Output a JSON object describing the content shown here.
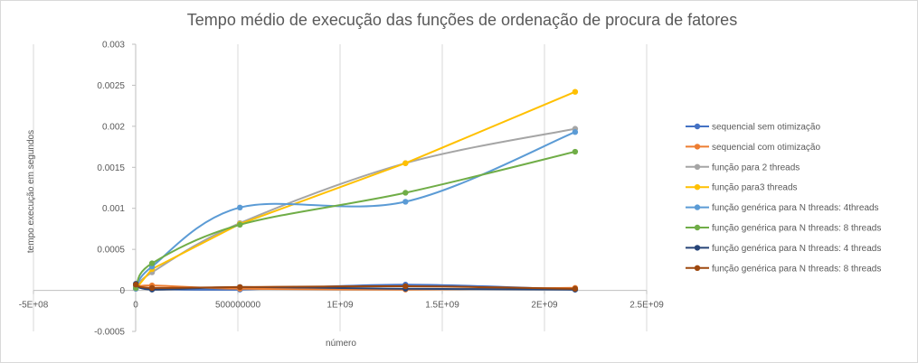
{
  "chart_data": {
    "type": "scatter",
    "title": "Tempo médio de execução das funções de ordenação de procura de fatores",
    "xlabel": "número",
    "ylabel": "tempo execução em segundos",
    "xlim": [
      -500000000,
      2500000000
    ],
    "ylim": [
      -0.0005,
      0.003
    ],
    "x_ticks": [
      -500000000,
      0,
      500000000,
      1000000000,
      1500000000,
      2000000000,
      2500000000
    ],
    "x_tick_labels": [
      "-5E+08",
      "0",
      "500000000",
      "1E+09",
      "1.5E+09",
      "2E+09",
      "2.5E+09"
    ],
    "y_ticks": [
      -0.0005,
      0,
      0.0005,
      0.001,
      0.0015,
      0.002,
      0.0025,
      0.003
    ],
    "y_tick_labels": [
      "-0.0005",
      "0",
      "0.0005",
      "0.001",
      "0.0015",
      "0.002",
      "0.0025",
      "0.003"
    ],
    "grid": "vertical major gridlines",
    "legend_position": "right",
    "series": [
      {
        "name": "sequencial sem otimização",
        "color": "#4472c4",
        "smooth": true,
        "x": [
          1000000,
          80000000,
          510000000,
          1320000000,
          2150000000
        ],
        "y": [
          5e-05,
          2e-05,
          1e-05,
          7e-05,
          1e-05
        ]
      },
      {
        "name": "sequencial com otimização",
        "color": "#ed7d31",
        "smooth": true,
        "x": [
          1000000,
          80000000,
          510000000,
          1320000000,
          2150000000
        ],
        "y": [
          3e-05,
          6e-05,
          2e-05,
          1e-05,
          3e-05
        ]
      },
      {
        "name": "função para 2 threads",
        "color": "#a5a5a5",
        "smooth": true,
        "x": [
          1000000,
          80000000,
          510000000,
          1320000000,
          2150000000
        ],
        "y": [
          2e-05,
          0.00022,
          0.00082,
          0.00155,
          0.00197
        ]
      },
      {
        "name": "função para3 threads",
        "color": "#ffc000",
        "smooth": false,
        "x": [
          1000000,
          80000000,
          510000000,
          1320000000,
          2150000000
        ],
        "y": [
          2e-05,
          0.00026,
          0.00081,
          0.00155,
          0.00242
        ]
      },
      {
        "name": "função genérica para N threads: 4threads",
        "color": "#5b9bd5",
        "smooth": true,
        "x": [
          1000000,
          80000000,
          510000000,
          1320000000,
          2150000000
        ],
        "y": [
          2e-05,
          0.00029,
          0.00101,
          0.00108,
          0.00193
        ]
      },
      {
        "name": "função genérica para N threads: 8 threads",
        "color": "#70ad47",
        "smooth": true,
        "x": [
          1000000,
          80000000,
          510000000,
          1320000000,
          2150000000
        ],
        "y": [
          3e-05,
          0.00033,
          0.0008,
          0.00119,
          0.00169
        ]
      },
      {
        "name": "função genérica para N threads: 4 threads",
        "color": "#264478",
        "smooth": true,
        "x": [
          1000000,
          80000000,
          510000000,
          1320000000,
          2150000000
        ],
        "y": [
          8e-05,
          1e-05,
          4e-05,
          2e-05,
          1e-05
        ]
      },
      {
        "name": "função genérica para N threads: 8 threads",
        "color": "#9e480e",
        "smooth": true,
        "x": [
          1000000,
          80000000,
          510000000,
          1320000000,
          2150000000
        ],
        "y": [
          7e-05,
          3e-05,
          4e-05,
          5e-05,
          2e-05
        ]
      }
    ]
  }
}
